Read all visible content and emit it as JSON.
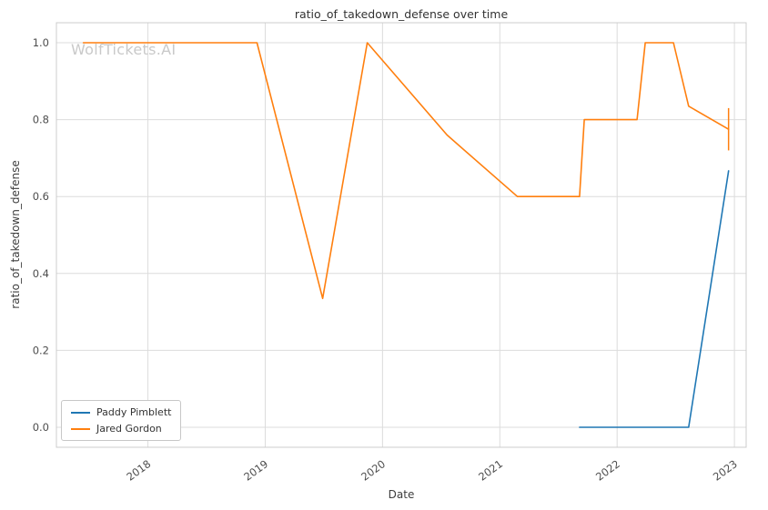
{
  "watermark": "WolfTickets.AI",
  "chart_data": {
    "type": "line",
    "title": "ratio_of_takedown_defense over time",
    "xlabel": "Date",
    "ylabel": "ratio_of_takedown_defense",
    "xlim": [
      2017.22,
      2023.1
    ],
    "ylim": [
      -0.052,
      1.052
    ],
    "x_ticks": [
      2018,
      2019,
      2020,
      2021,
      2022,
      2023
    ],
    "y_ticks": [
      0.0,
      0.2,
      0.4,
      0.6,
      0.8,
      1.0
    ],
    "grid": true,
    "legend_position": "lower left",
    "colors": {
      "grid": "#dcdcdc",
      "spine": "#cccccc",
      "tick_label": "#4d4d4d",
      "title": "#333333",
      "watermark": "#c9c9c9"
    },
    "series": [
      {
        "name": "Paddy Pimblett",
        "color": "#1f77b4",
        "points": [
          [
            2021.68,
            0.0
          ],
          [
            2022.61,
            0.0
          ],
          [
            2022.95,
            0.667
          ]
        ]
      },
      {
        "name": "Jared Gordon",
        "color": "#ff7f0e",
        "points": [
          [
            2017.45,
            1.0
          ],
          [
            2018.93,
            1.0
          ],
          [
            2019.49,
            0.335
          ],
          [
            2019.87,
            1.0
          ],
          [
            2020.55,
            0.76
          ],
          [
            2021.15,
            0.6
          ],
          [
            2021.68,
            0.6
          ],
          [
            2021.72,
            0.8
          ],
          [
            2022.17,
            0.8
          ],
          [
            2022.24,
            1.0
          ],
          [
            2022.48,
            1.0
          ],
          [
            2022.61,
            0.835
          ],
          [
            2022.95,
            0.775
          ]
        ]
      }
    ],
    "error_bars": [
      {
        "series": "Jared Gordon",
        "x": 2022.95,
        "y_min": 0.72,
        "y_max": 0.83,
        "color": "#ff7f0e"
      }
    ]
  }
}
